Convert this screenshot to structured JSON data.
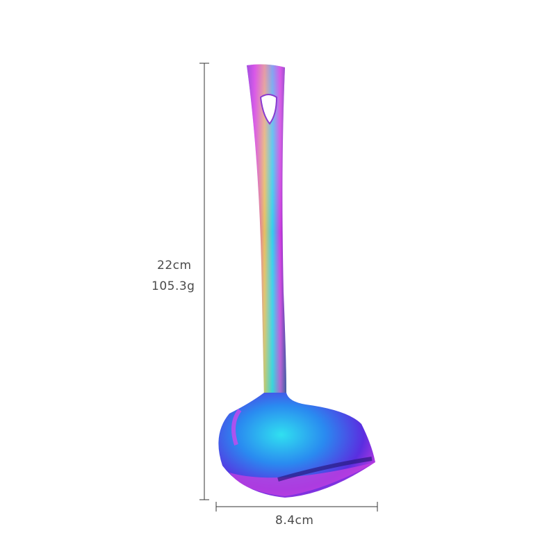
{
  "product": {
    "name_icon": "rainbow-ladle",
    "colors": {
      "magenta": "#d23be0",
      "blue": "#2a6bf0",
      "cyan": "#2fd0f0",
      "gold": "#e8c060",
      "purple": "#6a2bd0",
      "line": "#333333",
      "text": "#4a4a4a"
    }
  },
  "dimensions": {
    "length": "22cm",
    "weight": "105.3g",
    "width": "8.4cm"
  }
}
